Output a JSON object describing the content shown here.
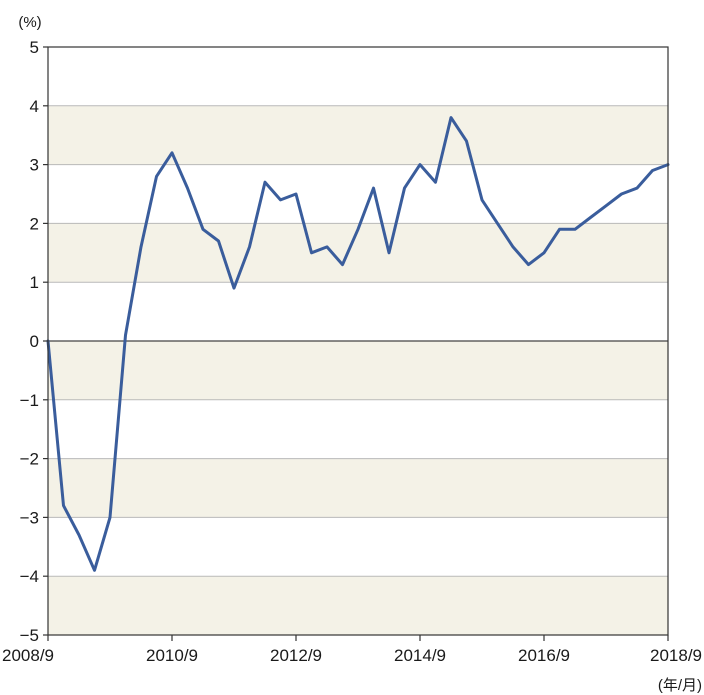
{
  "chart_data": {
    "type": "line",
    "title": "",
    "ylabel": "(%)",
    "xlabel": "(年/月)",
    "ylim": [
      -5,
      5
    ],
    "yticks": [
      5,
      4,
      3,
      2,
      1,
      0,
      -1,
      -2,
      -3,
      -4,
      -5
    ],
    "ytick_labels": [
      "5",
      "4",
      "3",
      "2",
      "1",
      "0",
      "−1",
      "−2",
      "−3",
      "−4",
      "−5"
    ],
    "xlim": [
      0,
      40
    ],
    "xticks": [
      0,
      8,
      16,
      24,
      32,
      40
    ],
    "xtick_labels": [
      "2008/9",
      "2010/9",
      "2012/9",
      "2014/9",
      "2016/9",
      "2018/9"
    ],
    "grid": true,
    "shaded_bands": [
      [
        3,
        4
      ],
      [
        1,
        2
      ],
      [
        -1,
        0
      ],
      [
        -3,
        -2
      ],
      [
        -5,
        -4
      ]
    ],
    "colors": {
      "line": "#3a5d9c",
      "band": "#f4f2e7",
      "grid": "#b9b9b9",
      "frame": "#333333"
    },
    "series": [
      {
        "x": [
          0,
          1,
          2,
          3,
          4,
          5,
          6,
          7,
          8,
          9,
          10,
          11,
          12,
          13,
          14,
          15,
          16,
          17,
          18,
          19,
          20,
          21,
          22,
          23,
          24,
          25,
          26,
          27,
          28,
          29,
          30,
          31,
          32,
          33,
          34,
          35,
          36,
          37,
          38,
          39,
          40
        ],
        "values": [
          0.0,
          -2.8,
          -3.3,
          -3.9,
          -3.0,
          0.1,
          1.6,
          2.8,
          3.2,
          2.6,
          1.9,
          1.7,
          0.9,
          1.6,
          2.7,
          2.4,
          2.5,
          1.5,
          1.6,
          1.3,
          1.9,
          2.6,
          1.5,
          2.6,
          3.0,
          2.7,
          3.8,
          3.4,
          2.4,
          2.0,
          1.6,
          1.3,
          1.5,
          1.9,
          1.9,
          2.1,
          2.3,
          2.5,
          2.6,
          2.9,
          3.0
        ]
      }
    ]
  }
}
